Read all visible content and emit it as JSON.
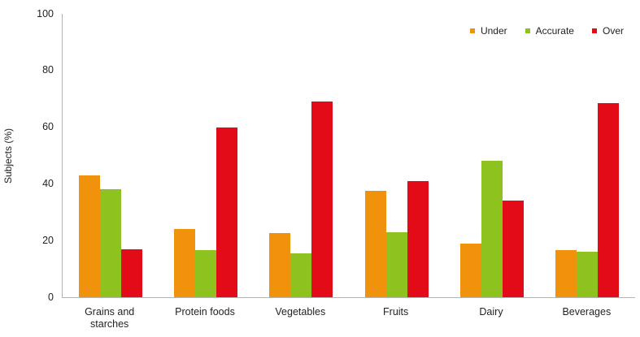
{
  "figure": {
    "ylabel": "Subjects (%)",
    "text_color": "#231f20",
    "axis_color": "#b3b3b3",
    "background": "#ffffff"
  },
  "chart_data": {
    "type": "bar",
    "title": "",
    "xlabel": "",
    "ylabel": "Subjects (%)",
    "categories": [
      "Grains and starches",
      "Protein foods",
      "Vegetables",
      "Fruits",
      "Dairy",
      "Beverages"
    ],
    "series": [
      {
        "name": "Under",
        "color": "#f0920b",
        "values": [
          43,
          24,
          22.5,
          37.5,
          19,
          16.5
        ]
      },
      {
        "name": "Accurate",
        "color": "#8dc21f",
        "values": [
          38,
          16.5,
          15.5,
          23,
          48,
          16
        ]
      },
      {
        "name": "Over",
        "color": "#e30b17",
        "values": [
          17,
          60,
          69,
          41,
          34,
          68.5
        ]
      }
    ],
    "ylim": [
      0,
      100
    ],
    "ytick_step": 20,
    "grid": false,
    "legend_position": "top-right"
  }
}
